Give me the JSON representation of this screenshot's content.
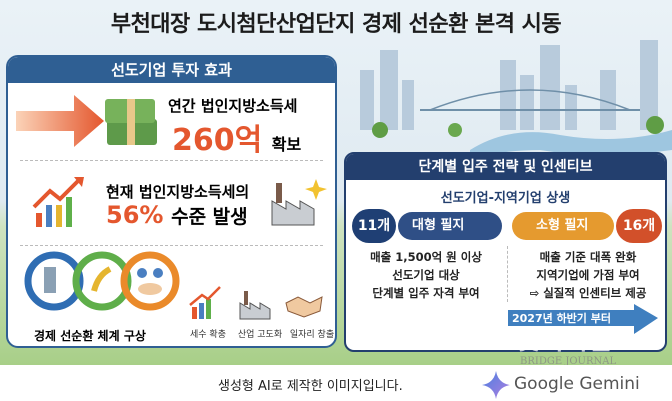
{
  "title": "부천대장 도시첨단산업단지 경제 선순환 본격 시동",
  "left_panel": {
    "header": "선도기업 투자 효과",
    "item1": {
      "line1": "연간 법인지방소득세",
      "value": "260억",
      "suffix": "확보"
    },
    "item2": {
      "line1": "현재 법인지방소득세의",
      "value": "56%",
      "suffix": "수준 발생"
    },
    "cycle_label": "경제 선순환 체계 구상",
    "benefits": [
      "세수 확충",
      "산업 고도화",
      "일자리 창출"
    ]
  },
  "right_panel": {
    "header": "단계별 입주 전략 및 인센티브",
    "subheader": "선도기업-지역기업 상생",
    "large": {
      "count": "11개",
      "label": "대형 필지",
      "lines": [
        "매출 1,500억 원 이상",
        "선도기업 대상",
        "단계별 입주 자격 부여"
      ]
    },
    "small": {
      "count": "16개",
      "label": "소형 필지",
      "lines": [
        "매출 기준 대폭 완화",
        "지역기업에 가점 부여",
        "⇨ 실질적 인센티브 제공"
      ]
    },
    "timeline": "2027년 하반기 부터"
  },
  "footer": {
    "caption": "생성형 AI로 제작한 이미지입니다.",
    "brand": "Google Gemini"
  },
  "watermark": {
    "ko": "브릿지저널",
    "en": "BRIDGE JOURNAL"
  },
  "colors": {
    "navy": "#233f6e",
    "blue": "#2f5f93",
    "orange": "#e4572e",
    "amber": "#e59a2f",
    "green": "#8fc46a"
  }
}
